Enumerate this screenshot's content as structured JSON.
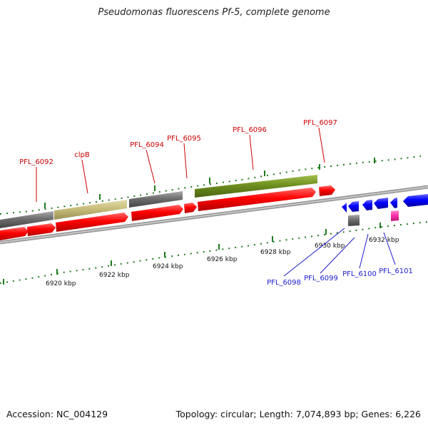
{
  "title": "Pseudomonas fluorescens Pf-5, complete genome",
  "footer": {
    "accession": "Accession: NC_004129",
    "topology": "Topology: circular; Length: 7,074,893 bp; Genes: 6,226"
  },
  "scale": {
    "ticks": [
      {
        "label": "6920 kbp"
      },
      {
        "label": "6922 kbp"
      },
      {
        "label": "6924 kbp"
      },
      {
        "label": "6926 kbp"
      },
      {
        "label": "6928 kbp"
      },
      {
        "label": "6930 kbp"
      },
      {
        "label": "6932 kbp"
      }
    ]
  },
  "genes_forward": [
    {
      "name": "PFL_6092"
    },
    {
      "name": "clpB"
    },
    {
      "name": "PFL_6094"
    },
    {
      "name": "PFL_6095"
    },
    {
      "name": "PFL_6096"
    },
    {
      "name": "PFL_6097"
    }
  ],
  "genes_reverse": [
    {
      "name": "PFL_6098"
    },
    {
      "name": "PFL_6099"
    },
    {
      "name": "PFL_6100"
    },
    {
      "name": "PFL_6101"
    }
  ],
  "colors": {
    "forward_label": "#cc0000",
    "reverse_label": "#1a1acc",
    "cds_forward": "#ff0000",
    "cds_reverse": "#0000ff",
    "gray_feature": "#6e6e6e",
    "khaki_feature": "#c8bd7a",
    "green_feature": "#6f8f1f",
    "pink_feature": "#ff33aa",
    "tick_green": "#1f7a1f",
    "backbone": "#888888"
  }
}
